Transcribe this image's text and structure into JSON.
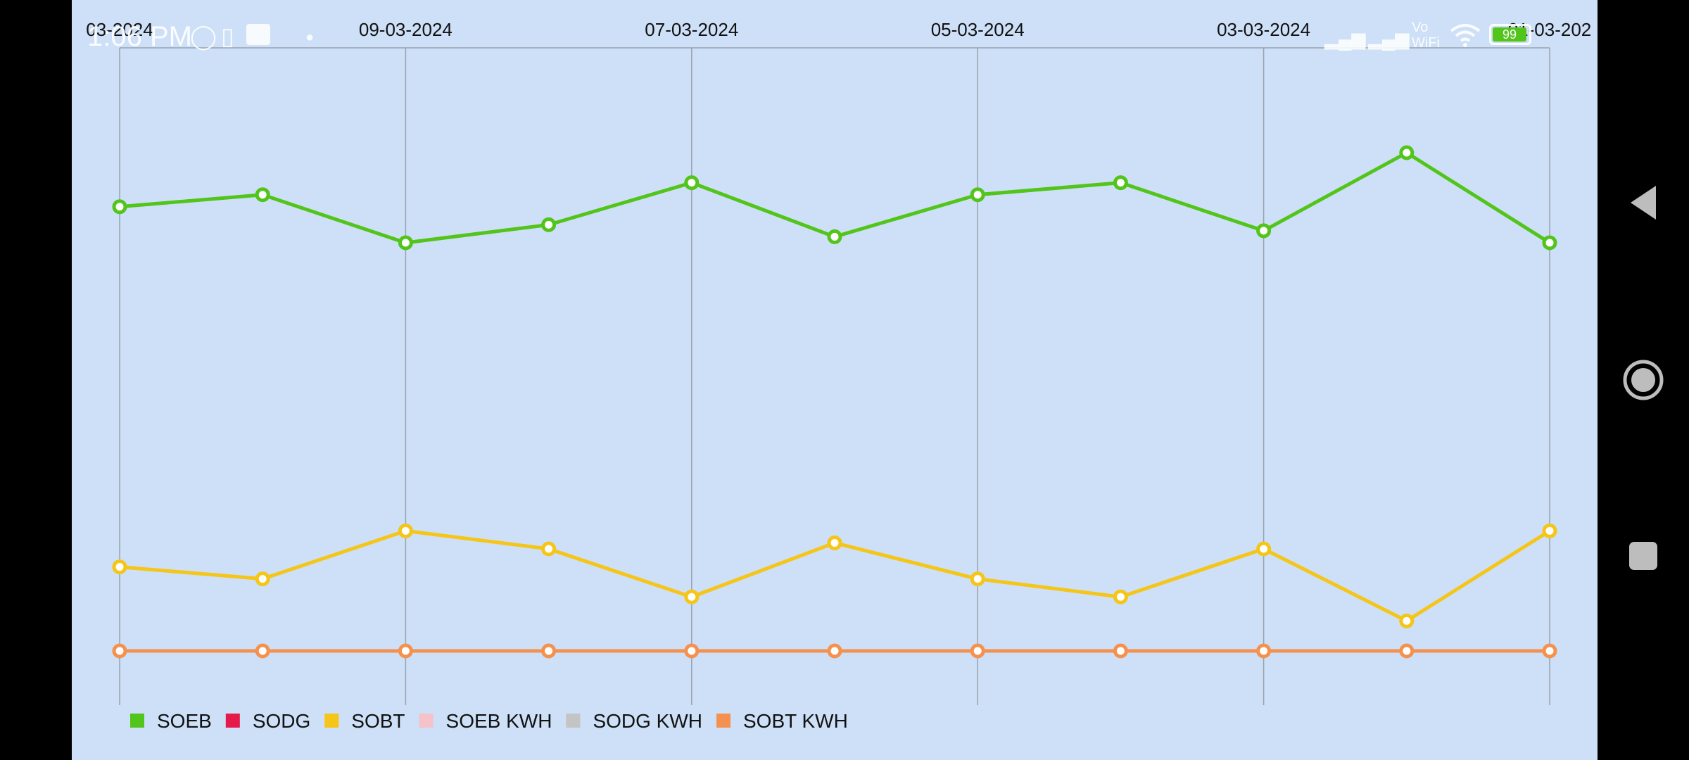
{
  "status_bar": {
    "time": "1:06 PM",
    "wifi_label": "Vo WiFi",
    "battery": "99"
  },
  "nav": {
    "back": "back-icon",
    "home": "home-icon",
    "recents": "recents-icon"
  },
  "chart_data": {
    "type": "line",
    "x_tick_labels": [
      "03-2024",
      "09-03-2024",
      "07-03-2024",
      "05-03-2024",
      "03-03-2024",
      "01-03-202"
    ],
    "x_count": 11,
    "ylim": [
      0,
      100
    ],
    "grid_vertical": true,
    "legend_placement": "bottom-left",
    "series": [
      {
        "name": "SOEB",
        "color": "#52c41a",
        "values": [
          74,
          76,
          68,
          71,
          78,
          69,
          76,
          78,
          70,
          83,
          68
        ]
      },
      {
        "name": "SODG",
        "color": "#e6194b",
        "values": [
          0,
          0,
          0,
          0,
          0,
          0,
          0,
          0,
          0,
          0,
          0
        ]
      },
      {
        "name": "SOBT",
        "color": "#f5c518",
        "values": [
          14,
          12,
          20,
          17,
          9,
          18,
          12,
          9,
          17,
          5,
          20
        ]
      },
      {
        "name": "SOEB KWH",
        "color": "#f4c2c8",
        "values": [
          0,
          0,
          0,
          0,
          0,
          0,
          0,
          0,
          0,
          0,
          0
        ]
      },
      {
        "name": "SODG KWH",
        "color": "#c4c4c4",
        "values": [
          0,
          0,
          0,
          0,
          0,
          0,
          0,
          0,
          0,
          0,
          0
        ]
      },
      {
        "name": "SOBT KWH",
        "color": "#f5914e",
        "values": [
          0,
          0,
          0,
          0,
          0,
          0,
          0,
          0,
          0,
          0,
          0
        ]
      }
    ],
    "visible_series": [
      "SOEB",
      "SOBT",
      "SOBT KWH"
    ]
  }
}
